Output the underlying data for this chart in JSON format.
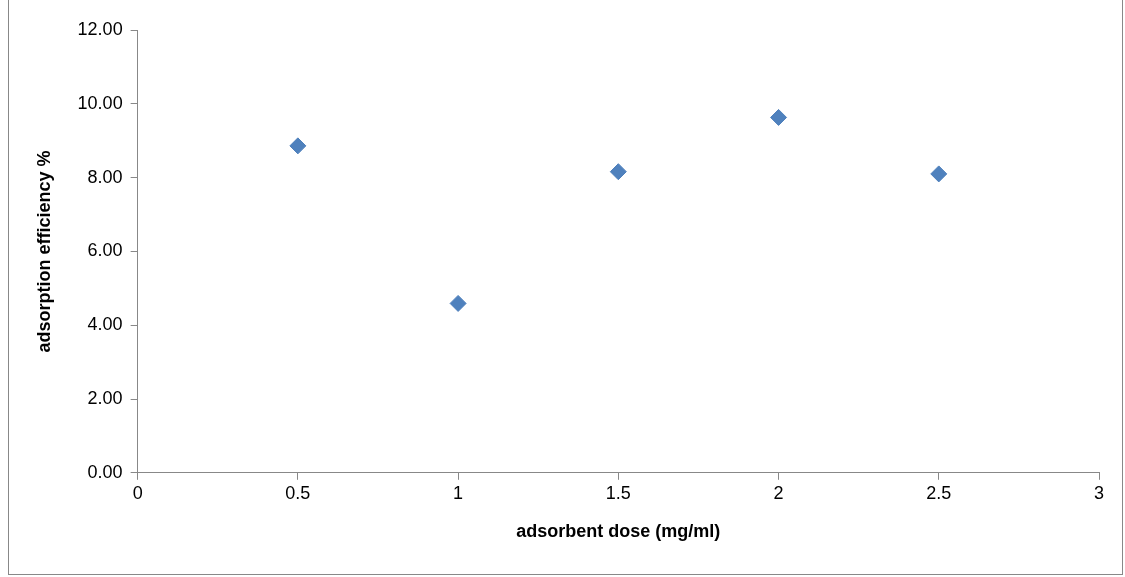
{
  "chart_data": {
    "type": "scatter",
    "xlabel": "adsorbent dose (mg/ml)",
    "ylabel": "adsorption efficiency %",
    "x": [
      0.5,
      1,
      1.5,
      2,
      2.5
    ],
    "series": [
      {
        "color": "#4f81bd",
        "values": [
          8.86,
          4.59,
          8.16,
          9.63,
          8.1
        ]
      }
    ],
    "marker": "diamond",
    "xlim": [
      0,
      3
    ],
    "xticks": [
      0,
      0.5,
      1,
      1.5,
      2,
      2.5,
      3
    ],
    "ylim": [
      0,
      12
    ],
    "yticks": [
      {
        "value": 0,
        "label": "0.00"
      },
      {
        "value": 2,
        "label": "2.00"
      },
      {
        "value": 4,
        "label": "4.00"
      },
      {
        "value": 6,
        "label": "6.00"
      },
      {
        "value": 8,
        "label": "8.00"
      },
      {
        "value": 10,
        "label": "10.00"
      },
      {
        "value": 12,
        "label": "12.00"
      }
    ]
  }
}
